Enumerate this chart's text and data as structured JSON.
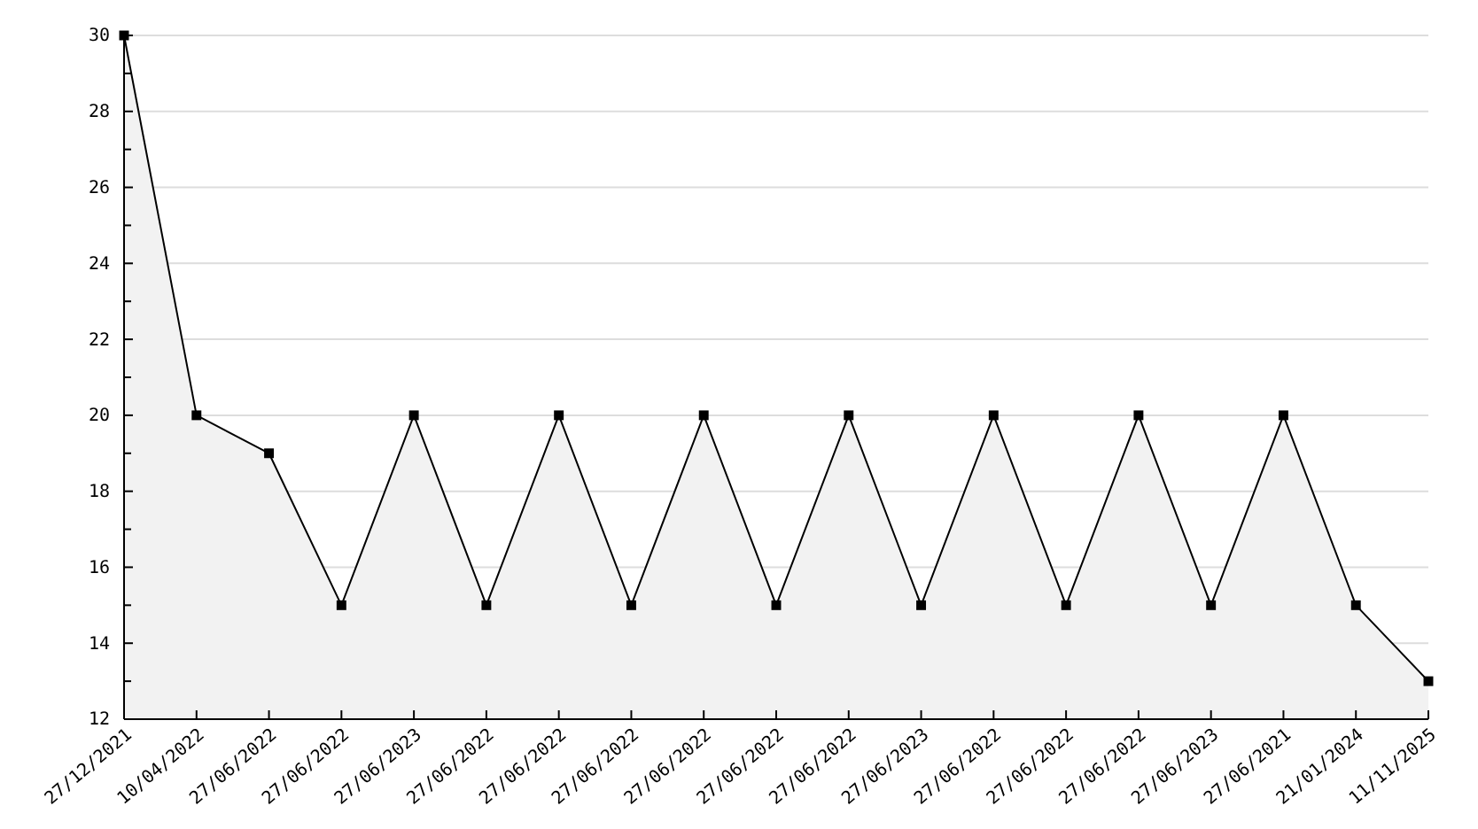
{
  "chart_data": {
    "type": "area",
    "categories": [
      "27/12/2021",
      "10/04/2022",
      "27/06/2022",
      "27/06/2022",
      "27/06/2023",
      "27/06/2022",
      "27/06/2022",
      "27/06/2022",
      "27/06/2022",
      "27/06/2022",
      "27/06/2022",
      "27/06/2023",
      "27/06/2022",
      "27/06/2022",
      "27/06/2022",
      "27/06/2023",
      "27/06/2021",
      "21/01/2024",
      "11/11/2025"
    ],
    "series": [
      {
        "color": "#000000",
        "values": [
          30,
          20,
          19,
          15,
          20,
          15,
          20,
          15,
          20,
          15,
          20,
          15,
          20,
          15,
          20,
          15,
          20,
          15,
          13
        ]
      }
    ],
    "ylim": [
      12,
      30
    ],
    "yticks": [
      12,
      {
        "value": 13,
        "label": null
      },
      14,
      {
        "value": 15,
        "label": null
      },
      16,
      {
        "value": 17,
        "label": null
      },
      18,
      {
        "value": 19,
        "label": null
      },
      20,
      {
        "value": 21,
        "label": null
      },
      22,
      {
        "value": 23,
        "label": null
      },
      24,
      {
        "value": 25,
        "label": null
      },
      26,
      {
        "value": 27,
        "label": null
      },
      28,
      {
        "value": 29,
        "label": null
      },
      30
    ],
    "grid": "y",
    "marker": "square"
  }
}
